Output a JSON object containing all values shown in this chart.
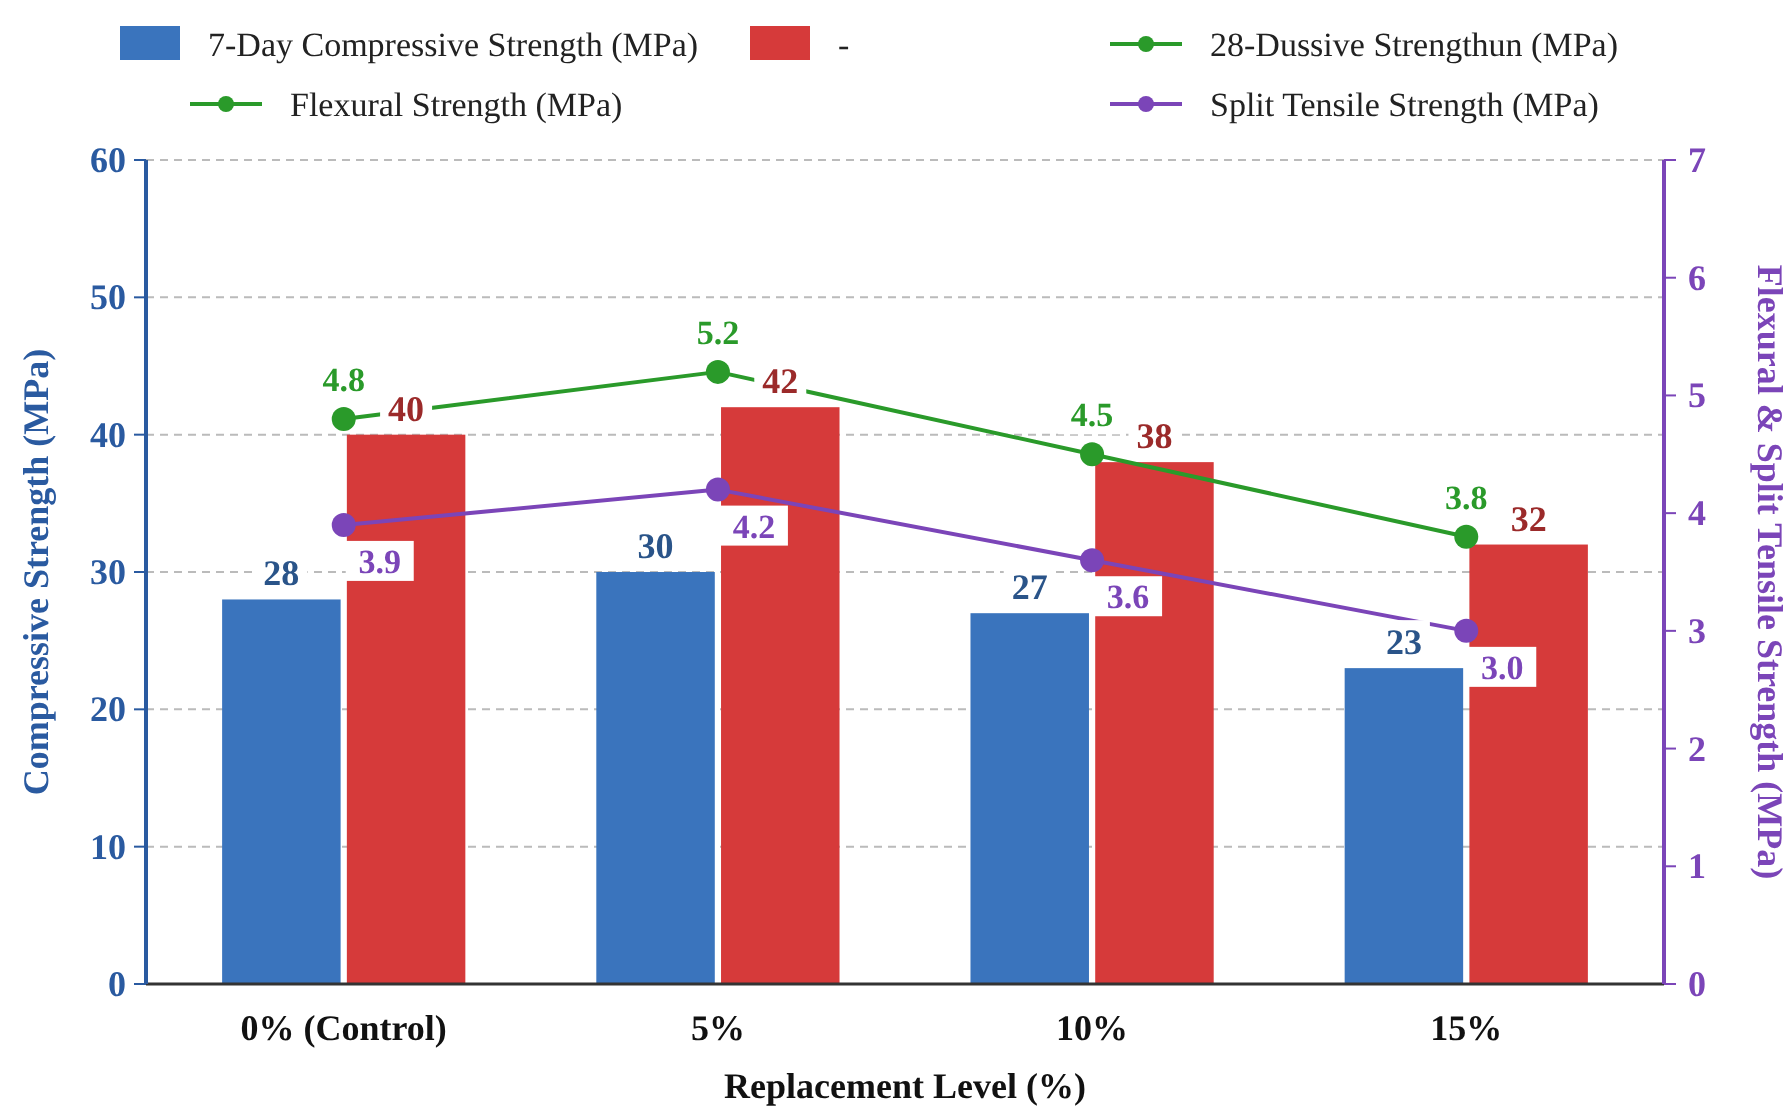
{
  "chart_data": {
    "type": "bar",
    "xlabel": "Replacement Level (%)",
    "ylabel": "Compressive Strength (MPa)",
    "y2label": "Flexural & Split Tensile Strength (MPa)",
    "categories": [
      "0% (Control)",
      "5%",
      "10%",
      "15%"
    ],
    "series": [
      {
        "name": "7-Day Compressive Strength (MPa)",
        "color": "#3a74bd",
        "values": [
          28,
          30,
          27,
          23
        ]
      },
      {
        "name": "-",
        "color": "#d63a3a",
        "values": [
          40,
          42,
          38,
          32
        ]
      },
      {
        "name": "28-Dussive Strengthun (MPa)",
        "type": "line",
        "color": "#2a9a2a",
        "values": [
          null,
          null,
          null,
          null
        ]
      },
      {
        "name": "Flexural Strength (MPa)",
        "type": "line",
        "axis": "y2",
        "color": "#2a9a2a",
        "values": [
          4.8,
          5.2,
          4.5,
          3.8
        ]
      },
      {
        "name": "Split Tensile Strength (MPa)",
        "type": "line",
        "axis": "y2",
        "color": "#7b45b8",
        "values": [
          3.9,
          4.2,
          3.6,
          3.0
        ],
        "value_labels": [
          "3.9",
          "4.2",
          "3.6",
          "3.0"
        ]
      }
    ],
    "ylim": [
      0,
      60
    ],
    "yticks": [
      0,
      10,
      20,
      30,
      40,
      50,
      60
    ],
    "y2lim": [
      0,
      7
    ],
    "y2ticks": [
      0,
      1,
      2,
      3,
      4,
      5,
      6,
      7
    ],
    "grid": "y",
    "legend": "top",
    "marker": "circle",
    "line_style": "solid",
    "data_labels": true
  }
}
